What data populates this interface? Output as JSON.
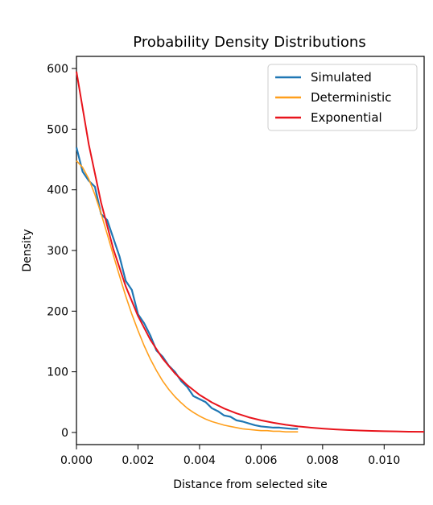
{
  "chart_data": {
    "type": "line",
    "title": "Probability Density Distributions",
    "xlabel": "Distance from selected site",
    "ylabel": "Density",
    "xlim": [
      0.0,
      0.0113
    ],
    "ylim": [
      -20,
      620
    ],
    "x_ticks": [
      0.0,
      0.002,
      0.004,
      0.006,
      0.008,
      0.01
    ],
    "x_tick_labels": [
      "0.000",
      "0.002",
      "0.004",
      "0.006",
      "0.008",
      "0.010"
    ],
    "y_ticks": [
      0,
      100,
      200,
      300,
      400,
      500,
      600
    ],
    "y_tick_labels": [
      "0",
      "100",
      "200",
      "300",
      "400",
      "500",
      "600"
    ],
    "grid": false,
    "legend_position": "top-right",
    "legend": [
      "Simulated",
      "Deterministic",
      "Exponential"
    ],
    "series": [
      {
        "name": "Simulated",
        "color": "#1f77b4",
        "x": [
          0.0,
          0.0002,
          0.0004,
          0.0006,
          0.0008,
          0.001,
          0.0012,
          0.0014,
          0.0016,
          0.0018,
          0.002,
          0.0022,
          0.0024,
          0.0026,
          0.0028,
          0.003,
          0.0032,
          0.0034,
          0.0036,
          0.0038,
          0.004,
          0.0042,
          0.0044,
          0.0046,
          0.0048,
          0.005,
          0.0052,
          0.0054,
          0.0056,
          0.0058,
          0.006,
          0.0062,
          0.0064,
          0.0066,
          0.0068,
          0.007,
          0.0072
        ],
        "y": [
          470,
          430,
          415,
          405,
          360,
          350,
          320,
          290,
          250,
          235,
          195,
          180,
          160,
          135,
          125,
          110,
          100,
          85,
          75,
          60,
          55,
          50,
          40,
          35,
          28,
          26,
          20,
          18,
          15,
          12,
          10,
          9,
          8,
          8,
          7,
          6,
          6
        ]
      },
      {
        "name": "Deterministic",
        "color": "#ff9f1c",
        "x": [
          0.0,
          0.0002,
          0.0004,
          0.0006,
          0.0008,
          0.001,
          0.0012,
          0.0014,
          0.0016,
          0.0018,
          0.002,
          0.0022,
          0.0024,
          0.0026,
          0.0028,
          0.003,
          0.0032,
          0.0034,
          0.0036,
          0.0038,
          0.004,
          0.0042,
          0.0044,
          0.0046,
          0.0048,
          0.005,
          0.0052,
          0.0054,
          0.0056,
          0.0058,
          0.006,
          0.0062,
          0.0064,
          0.0066,
          0.0068,
          0.007,
          0.0072
        ],
        "y": [
          448,
          437,
          418,
          392,
          361,
          327,
          292,
          258,
          225,
          195,
          168,
          143,
          121,
          102,
          85,
          71,
          59,
          49,
          40,
          33,
          27,
          22,
          18,
          15,
          12,
          10,
          8,
          6,
          5,
          4,
          3,
          3,
          2,
          2,
          1,
          1,
          1
        ]
      },
      {
        "name": "Exponential",
        "color": "#e8141c",
        "x": [
          0.0,
          0.0004,
          0.0008,
          0.0012,
          0.0016,
          0.002,
          0.0024,
          0.0028,
          0.0032,
          0.0036,
          0.004,
          0.0044,
          0.0048,
          0.0052,
          0.0056,
          0.006,
          0.0064,
          0.0068,
          0.0072,
          0.0076,
          0.008,
          0.0084,
          0.0088,
          0.0092,
          0.0096,
          0.01,
          0.0104,
          0.0108,
          0.0113
        ],
        "y": [
          595,
          475,
          379,
          302,
          241,
          192,
          153,
          122,
          97.5,
          78,
          62,
          49.5,
          39.5,
          31.5,
          25,
          20,
          16,
          12.7,
          10.1,
          8.1,
          6.4,
          5.1,
          4.1,
          3.3,
          2.6,
          2.1,
          1.7,
          1.3,
          1.0
        ]
      }
    ]
  }
}
